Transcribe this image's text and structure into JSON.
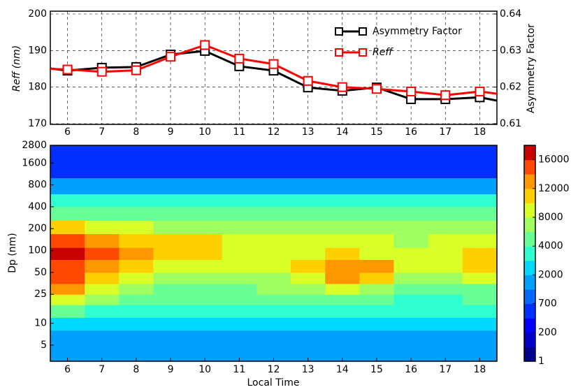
{
  "chart_data": [
    {
      "type": "line",
      "x": [
        5.5,
        6,
        7,
        8,
        9,
        10,
        11,
        12,
        13,
        14,
        15,
        16,
        17,
        18,
        18.5
      ],
      "series": [
        {
          "name": "Asymmetry Factor",
          "color": "#000000",
          "axis": "y2",
          "values": [
            0.6251,
            0.6245,
            0.6253,
            0.6255,
            0.6289,
            0.6299,
            0.6257,
            0.6245,
            0.6199,
            0.619,
            0.6199,
            0.6167,
            0.6167,
            0.6172,
            0.6163
          ]
        },
        {
          "name": "Reff",
          "color": "#ff0000",
          "values": [
            185,
            184.8,
            184.2,
            184.6,
            188.3,
            191.5,
            187.8,
            186.3,
            181.7,
            180,
            179.5,
            178.8,
            177.8,
            178.8,
            178.2
          ]
        }
      ],
      "xlim": [
        5.5,
        18.5
      ],
      "xticks": [
        6,
        7,
        8,
        9,
        10,
        11,
        12,
        13,
        14,
        15,
        16,
        17,
        18
      ],
      "ylim": [
        170,
        200
      ],
      "yticks": [
        170,
        180,
        190,
        200
      ],
      "y2lim": [
        0.61,
        0.64
      ],
      "y2ticks": [
        0.61,
        0.62,
        0.63,
        0.64
      ],
      "ylabel": "Reff (nm)",
      "y2label": "Asymmetry Factor",
      "grid": true,
      "legend": "upper right"
    },
    {
      "type": "contour",
      "x": [
        6,
        7,
        8,
        9,
        10,
        11,
        12,
        13,
        14,
        15,
        16,
        17,
        18
      ],
      "y_bins": [
        3,
        5,
        8,
        12,
        18,
        25,
        35,
        50,
        75,
        110,
        170,
        260,
        400,
        600,
        1000,
        2800
      ],
      "z": [
        [
          1200,
          1200,
          1200,
          1200,
          1200,
          1200,
          1200,
          1200,
          1200,
          1200,
          1200,
          1200,
          1200
        ],
        [
          1800,
          1800,
          1800,
          1800,
          1800,
          1800,
          1800,
          1800,
          1800,
          1800,
          1800,
          1800,
          1800
        ],
        [
          2500,
          2500,
          2500,
          2500,
          2500,
          2500,
          2500,
          2500,
          2500,
          2500,
          2500,
          2500,
          2500
        ],
        [
          4500,
          3500,
          3000,
          3000,
          3000,
          3000,
          3000,
          3000,
          3000,
          3000,
          3000,
          3000,
          3000
        ],
        [
          9000,
          6000,
          4500,
          4000,
          4000,
          4000,
          4000,
          4000,
          4500,
          4000,
          3500,
          3800,
          4000
        ],
        [
          12000,
          9000,
          6000,
          5000,
          5000,
          5000,
          6000,
          7000,
          8000,
          6000,
          4000,
          4500,
          5500
        ],
        [
          14000,
          10000,
          8000,
          7000,
          7000,
          7000,
          7000,
          9000,
          12000,
          11000,
          6000,
          7000,
          9000
        ],
        [
          15000,
          13000,
          11000,
          9000,
          9000,
          8000,
          8000,
          10000,
          12500,
          12000,
          9000,
          9000,
          10000
        ],
        [
          16500,
          14000,
          12500,
          11000,
          10000,
          9000,
          8500,
          9000,
          10000,
          9000,
          8500,
          9000,
          10000
        ],
        [
          15000,
          13000,
          11000,
          10000,
          10000,
          9000,
          8500,
          8000,
          8000,
          8000,
          7500,
          8000,
          8000
        ],
        [
          10000,
          9000,
          8000,
          7000,
          7000,
          7000,
          7000,
          7000,
          7000,
          7000,
          7000,
          7000,
          7000
        ],
        [
          5000,
          5000,
          5000,
          5000,
          5000,
          5000,
          5000,
          5000,
          5000,
          5000,
          5000,
          5000,
          5000
        ],
        [
          3000,
          3000,
          3000,
          3000,
          3000,
          3000,
          3000,
          3000,
          3000,
          3000,
          3000,
          3000,
          3000
        ],
        [
          1500,
          1500,
          1500,
          1500,
          1500,
          1500,
          1500,
          1500,
          1500,
          1500,
          1500,
          1500,
          1500
        ],
        [
          500,
          500,
          500,
          500,
          500,
          500,
          500,
          500,
          500,
          500,
          500,
          500,
          500
        ]
      ],
      "xlim": [
        5.5,
        18.5
      ],
      "xticks": [
        6,
        7,
        8,
        9,
        10,
        11,
        12,
        13,
        14,
        15,
        16,
        17,
        18
      ],
      "ylim": [
        3,
        2800
      ],
      "yticks": [
        5,
        10,
        25,
        50,
        100,
        200,
        400,
        800,
        1600,
        2800
      ],
      "log_y": true,
      "xlabel": "Local Time",
      "ylabel": "Dp (nm)",
      "levels": [
        1,
        100,
        200,
        400,
        700,
        1000,
        2000,
        3000,
        4000,
        6000,
        8000,
        10000,
        12000,
        14000,
        16000,
        18000
      ],
      "colors": [
        "#00008f",
        "#0000c8",
        "#0000ff",
        "#0030ff",
        "#0068ff",
        "#00a0ff",
        "#00d8ff",
        "#30ffcf",
        "#68ff97",
        "#a0ff60",
        "#d8ff28",
        "#ffd000",
        "#ff9800",
        "#ff4800",
        "#c80000"
      ],
      "colorbar_ticks": [
        1,
        200,
        700,
        2000,
        4000,
        8000,
        12000,
        16000
      ]
    }
  ]
}
